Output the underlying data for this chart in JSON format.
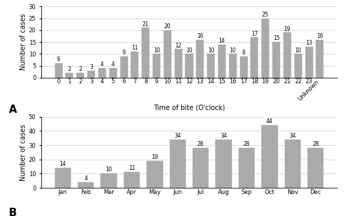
{
  "chart_A": {
    "categories": [
      "0",
      "1",
      "2",
      "3",
      "4",
      "5",
      "6",
      "7",
      "8",
      "9",
      "10",
      "11",
      "12",
      "13",
      "14",
      "15",
      "16",
      "17",
      "18",
      "19",
      "20",
      "21",
      "22",
      "23",
      "Unknown"
    ],
    "values": [
      6,
      2,
      2,
      3,
      4,
      4,
      9,
      11,
      21,
      10,
      20,
      12,
      10,
      16,
      10,
      14,
      10,
      9,
      17,
      25,
      15,
      19,
      10,
      13,
      16
    ],
    "xlabel": "Time of bite (O'clock)",
    "ylabel": "Number of cases",
    "ylim": [
      0,
      30
    ],
    "yticks": [
      0,
      5,
      10,
      15,
      20,
      25,
      30
    ],
    "label": "A",
    "bar_color": "#aaaaaa"
  },
  "chart_B": {
    "categories": [
      "Jan",
      "Feb",
      "Mar",
      "Apr",
      "May",
      "Jun",
      "Jul",
      "Aug",
      "Sep",
      "Oct",
      "Nov",
      "Dec"
    ],
    "values": [
      14,
      4,
      10,
      11,
      19,
      34,
      28,
      34,
      28,
      44,
      34,
      28
    ],
    "ylabel": "Number of cases",
    "ylim": [
      0,
      50
    ],
    "yticks": [
      0,
      10,
      20,
      30,
      40,
      50
    ],
    "label": "B",
    "bar_color": "#aaaaaa"
  },
  "value_fontsize": 5.5,
  "axis_label_fontsize": 7,
  "tick_fontsize": 6,
  "panel_label_fontsize": 11,
  "grid_color": "#cccccc",
  "background_color": "#ffffff"
}
